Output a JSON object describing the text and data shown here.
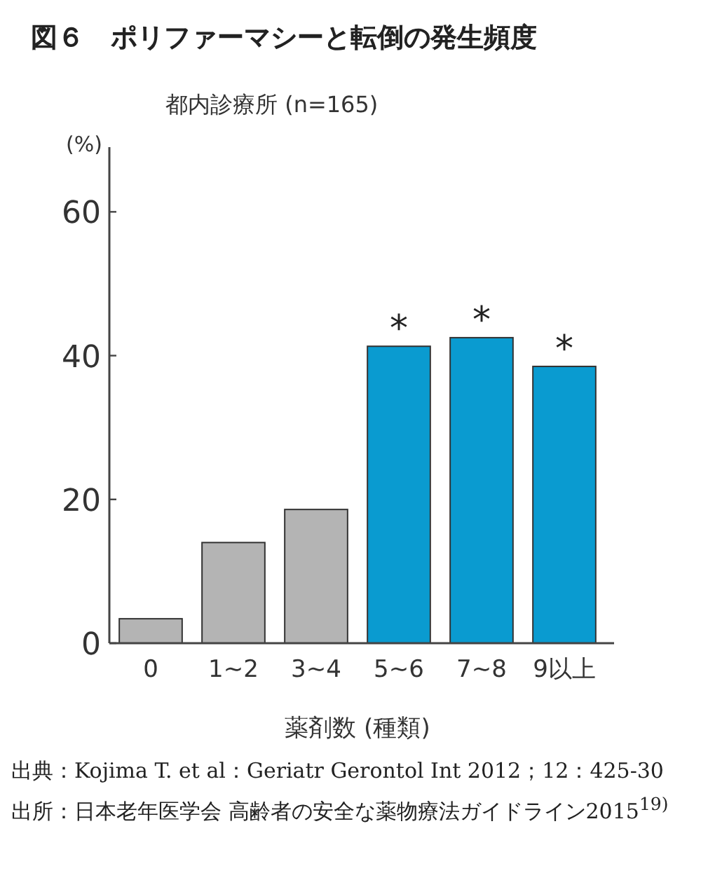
{
  "chart_data": {
    "type": "bar",
    "title": "図６　ポリファーマシーと転倒の発生頻度",
    "subtitle": "都内診療所 (n=165)",
    "ylabel": "(%)",
    "xlabel": "薬剤数 (種類)",
    "categories": [
      "0",
      "1~2",
      "3~4",
      "5~6",
      "7~8",
      "9以上"
    ],
    "values": [
      3.4,
      14.0,
      18.6,
      41.3,
      42.5,
      38.5
    ],
    "colors": [
      "#b4b4b4",
      "#b4b4b4",
      "#b4b4b4",
      "#0a9bd0",
      "#0a9bd0",
      "#0a9bd0"
    ],
    "ylim": [
      0,
      69
    ],
    "yticks": [
      0,
      20,
      40,
      60
    ],
    "grid": false,
    "annotations": [
      {
        "text": "*",
        "x": "5~6",
        "y": 41.3
      },
      {
        "text": "*",
        "x": "7~8",
        "y": 42.5
      },
      {
        "text": "*",
        "x": "9以上",
        "y": 38.5
      },
      "出典：Kojima T. et al：Geriatr Gerontol Int 2012；12：425-30",
      "出所：日本老年医学会 高齢者の安全な薬物療法ガイドライン2015$^{19)}$"
    ]
  }
}
